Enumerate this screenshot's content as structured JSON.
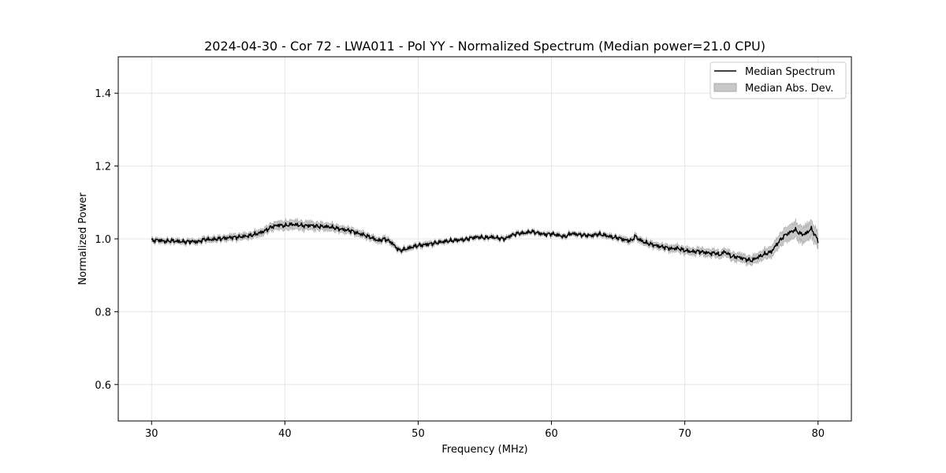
{
  "chart_data": {
    "type": "line",
    "title": "2024-04-30 - Cor 72 - LWA011 - Pol YY - Normalized Spectrum (Median power=21.0 CPU)",
    "xlabel": "Frequency (MHz)",
    "ylabel": "Normalized Power",
    "xlim": [
      27.5,
      82.5
    ],
    "ylim": [
      0.5,
      1.5
    ],
    "xticks": [
      30,
      40,
      50,
      60,
      70,
      80
    ],
    "yticks": [
      0.6,
      0.8,
      1.0,
      1.2,
      1.4
    ],
    "xtick_labels": [
      "30",
      "40",
      "50",
      "60",
      "70",
      "80"
    ],
    "ytick_labels": [
      "0.6",
      "0.8",
      "1.0",
      "1.2",
      "1.4"
    ],
    "grid": true,
    "legend_position": "top-right",
    "legend": {
      "median_label": "Median Spectrum",
      "mad_label": "Median Abs. Dev."
    },
    "colors": {
      "line": "#000000",
      "band": "#c8c8c8",
      "band_edge": "#a8a8a8",
      "grid": "#e6e6e6"
    },
    "series": [
      {
        "name": "Median Spectrum",
        "x": [
          30.0,
          30.5,
          31.0,
          31.5,
          32.0,
          32.5,
          33.0,
          33.5,
          34.0,
          34.5,
          35.0,
          35.5,
          36.0,
          36.5,
          37.0,
          37.5,
          38.0,
          38.5,
          39.0,
          39.5,
          40.0,
          40.5,
          41.0,
          41.5,
          42.0,
          42.5,
          43.0,
          43.5,
          44.0,
          44.5,
          45.0,
          45.5,
          46.0,
          46.5,
          47.0,
          47.5,
          48.0,
          48.3,
          48.6,
          49.0,
          49.5,
          50.0,
          50.5,
          51.0,
          51.5,
          52.0,
          52.5,
          53.0,
          53.5,
          54.0,
          54.5,
          55.0,
          55.5,
          56.0,
          56.5,
          57.0,
          57.5,
          58.0,
          58.5,
          59.0,
          59.5,
          60.0,
          60.5,
          61.0,
          61.5,
          62.0,
          62.5,
          63.0,
          63.5,
          64.0,
          64.5,
          65.0,
          65.5,
          66.0,
          66.3,
          66.5,
          67.0,
          67.5,
          68.0,
          68.5,
          69.0,
          69.5,
          70.0,
          70.5,
          71.0,
          71.5,
          72.0,
          72.3,
          72.6,
          73.0,
          73.5,
          74.0,
          74.5,
          75.0,
          75.5,
          76.0,
          76.5,
          77.0,
          77.5,
          78.0,
          78.3,
          78.6,
          79.0,
          79.5,
          80.0
        ],
        "values": [
          0.995,
          0.997,
          0.993,
          0.995,
          0.993,
          0.992,
          0.993,
          0.992,
          0.999,
          0.998,
          1.0,
          1.002,
          1.004,
          1.005,
          1.007,
          1.01,
          1.015,
          1.022,
          1.033,
          1.038,
          1.036,
          1.04,
          1.038,
          1.036,
          1.037,
          1.034,
          1.034,
          1.032,
          1.028,
          1.025,
          1.022,
          1.015,
          1.01,
          1.003,
          0.995,
          1.0,
          0.99,
          0.978,
          0.968,
          0.971,
          0.977,
          0.982,
          0.984,
          0.987,
          0.99,
          0.993,
          0.995,
          0.997,
          0.998,
          1.003,
          1.005,
          1.003,
          1.005,
          1.002,
          1.0,
          1.01,
          1.015,
          1.016,
          1.02,
          1.016,
          1.012,
          1.014,
          1.01,
          1.006,
          1.015,
          1.012,
          1.01,
          1.009,
          1.013,
          1.01,
          1.005,
          1.003,
          0.997,
          0.995,
          1.008,
          1.0,
          0.99,
          0.985,
          0.98,
          0.977,
          0.973,
          0.974,
          0.968,
          0.965,
          0.966,
          0.963,
          0.96,
          0.962,
          0.955,
          0.965,
          0.952,
          0.95,
          0.945,
          0.94,
          0.95,
          0.958,
          0.965,
          0.99,
          1.01,
          1.02,
          1.025,
          1.015,
          1.012,
          1.028,
          0.995
        ]
      },
      {
        "name": "Median Abs. Dev.",
        "band_halfwidth": [
          0.006,
          0.006,
          0.006,
          0.006,
          0.006,
          0.006,
          0.006,
          0.006,
          0.007,
          0.007,
          0.007,
          0.007,
          0.008,
          0.008,
          0.008,
          0.008,
          0.009,
          0.009,
          0.01,
          0.011,
          0.012,
          0.012,
          0.012,
          0.011,
          0.011,
          0.01,
          0.01,
          0.01,
          0.009,
          0.009,
          0.008,
          0.008,
          0.008,
          0.007,
          0.007,
          0.007,
          0.007,
          0.007,
          0.006,
          0.006,
          0.006,
          0.006,
          0.006,
          0.006,
          0.005,
          0.005,
          0.005,
          0.005,
          0.005,
          0.005,
          0.005,
          0.005,
          0.005,
          0.005,
          0.005,
          0.005,
          0.005,
          0.005,
          0.005,
          0.005,
          0.005,
          0.005,
          0.005,
          0.005,
          0.005,
          0.005,
          0.005,
          0.005,
          0.006,
          0.006,
          0.006,
          0.006,
          0.007,
          0.007,
          0.007,
          0.007,
          0.008,
          0.008,
          0.008,
          0.008,
          0.009,
          0.009,
          0.009,
          0.009,
          0.009,
          0.01,
          0.01,
          0.01,
          0.01,
          0.01,
          0.011,
          0.011,
          0.011,
          0.011,
          0.012,
          0.013,
          0.015,
          0.017,
          0.019,
          0.021,
          0.021,
          0.022,
          0.022,
          0.022,
          0.021
        ]
      }
    ]
  }
}
